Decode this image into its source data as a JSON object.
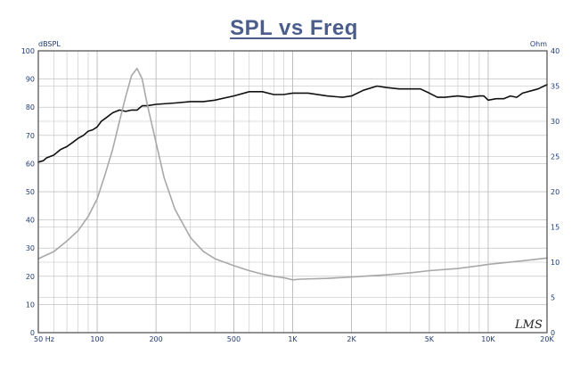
{
  "chart_data": {
    "type": "line",
    "title": "SPL vs Freq",
    "x_scale": "log",
    "xlim": [
      50,
      20000
    ],
    "x_ticks": [
      {
        "value": 50,
        "label": "50  Hz"
      },
      {
        "value": 100,
        "label": "100"
      },
      {
        "value": 200,
        "label": "200"
      },
      {
        "value": 500,
        "label": "500"
      },
      {
        "value": 1000,
        "label": "1K"
      },
      {
        "value": 2000,
        "label": "2K"
      },
      {
        "value": 5000,
        "label": "5K"
      },
      {
        "value": 10000,
        "label": "10K"
      },
      {
        "value": 20000,
        "label": "20K"
      }
    ],
    "y_left": {
      "unit": "dBSPL",
      "range": [
        0,
        100
      ],
      "ticks": [
        0,
        10,
        20,
        30,
        40,
        50,
        60,
        70,
        80,
        90,
        100
      ]
    },
    "y_right": {
      "unit": "Ohm",
      "range": [
        0,
        40
      ],
      "ticks": [
        0,
        5,
        10,
        15,
        20,
        25,
        30,
        35,
        40
      ]
    },
    "grid": true,
    "signature_text": "LMS",
    "colors": {
      "spl": "#111111",
      "impedance": "#a8a8a8",
      "grid": "#b9b9b9",
      "frame": "#4a4a4a",
      "tick_text": "#1f3a73",
      "title": "#4a5d8c"
    },
    "series": [
      {
        "axis": "left",
        "points": [
          [
            50,
            60.5
          ],
          [
            53,
            61
          ],
          [
            55,
            62
          ],
          [
            60,
            63
          ],
          [
            65,
            65
          ],
          [
            70,
            66
          ],
          [
            75,
            67.5
          ],
          [
            80,
            69
          ],
          [
            85,
            70
          ],
          [
            90,
            71.5
          ],
          [
            95,
            72
          ],
          [
            100,
            73
          ],
          [
            105,
            75
          ],
          [
            110,
            76
          ],
          [
            120,
            78
          ],
          [
            130,
            79
          ],
          [
            140,
            78.5
          ],
          [
            150,
            79
          ],
          [
            160,
            79
          ],
          [
            170,
            80.5
          ],
          [
            180,
            80.5
          ],
          [
            200,
            81
          ],
          [
            250,
            81.5
          ],
          [
            300,
            82
          ],
          [
            350,
            82
          ],
          [
            400,
            82.5
          ],
          [
            500,
            84
          ],
          [
            600,
            85.5
          ],
          [
            700,
            85.5
          ],
          [
            800,
            84.5
          ],
          [
            900,
            84.5
          ],
          [
            1000,
            85
          ],
          [
            1200,
            85
          ],
          [
            1500,
            84
          ],
          [
            1800,
            83.5
          ],
          [
            2000,
            84
          ],
          [
            2300,
            86
          ],
          [
            2700,
            87.5
          ],
          [
            3000,
            87
          ],
          [
            3500,
            86.5
          ],
          [
            4000,
            86.5
          ],
          [
            4500,
            86.5
          ],
          [
            5000,
            85
          ],
          [
            5500,
            83.5
          ],
          [
            6000,
            83.5
          ],
          [
            7000,
            84
          ],
          [
            8000,
            83.5
          ],
          [
            9000,
            84
          ],
          [
            9500,
            84
          ],
          [
            10000,
            82.5
          ],
          [
            11000,
            83
          ],
          [
            12000,
            83
          ],
          [
            13000,
            84
          ],
          [
            14000,
            83.5
          ],
          [
            15000,
            85
          ],
          [
            17000,
            86
          ],
          [
            18000,
            86.5
          ],
          [
            20000,
            88
          ]
        ]
      },
      {
        "axis": "right",
        "points": [
          [
            50,
            10.5
          ],
          [
            60,
            11.5
          ],
          [
            70,
            13
          ],
          [
            80,
            14.5
          ],
          [
            90,
            16.5
          ],
          [
            100,
            19
          ],
          [
            110,
            22.5
          ],
          [
            120,
            26
          ],
          [
            130,
            30
          ],
          [
            140,
            33.5
          ],
          [
            150,
            36.5
          ],
          [
            160,
            37.5
          ],
          [
            170,
            36
          ],
          [
            180,
            32.5
          ],
          [
            200,
            27
          ],
          [
            220,
            22
          ],
          [
            250,
            17.5
          ],
          [
            300,
            13.5
          ],
          [
            350,
            11.5
          ],
          [
            400,
            10.5
          ],
          [
            500,
            9.5
          ],
          [
            600,
            8.8
          ],
          [
            700,
            8.3
          ],
          [
            800,
            8
          ],
          [
            900,
            7.8
          ],
          [
            1000,
            7.5
          ],
          [
            1100,
            7.6
          ],
          [
            1500,
            7.7
          ],
          [
            2000,
            7.9
          ],
          [
            3000,
            8.2
          ],
          [
            4000,
            8.5
          ],
          [
            5000,
            8.8
          ],
          [
            7000,
            9.1
          ],
          [
            9000,
            9.5
          ],
          [
            10000,
            9.7
          ],
          [
            15000,
            10.2
          ],
          [
            20000,
            10.6
          ]
        ]
      }
    ]
  }
}
